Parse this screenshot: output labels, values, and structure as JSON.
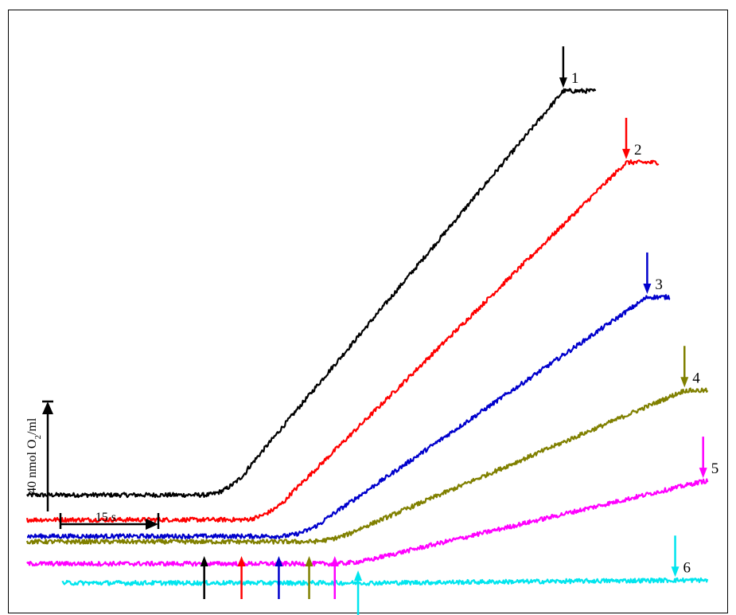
{
  "chart_data": {
    "type": "line",
    "title": "",
    "xlabel": "",
    "ylabel": "",
    "time_scale_bar": {
      "label": "15 s",
      "seconds": 15
    },
    "oxygen_scale_bar": {
      "label_prefix": "40 nmol O",
      "label_sub": "2",
      "label_suffix": "/ml",
      "nmol_per_ml": 40
    },
    "x_unit": "s",
    "y_unit": "nmol O2/ml",
    "series": [
      {
        "name": "1",
        "color": "#000000",
        "baseline": 17,
        "start_x": 0,
        "onset_x": 76,
        "rise_end_x": 230,
        "plateau": 164,
        "end_x": 244,
        "start_arrow_x": 76,
        "end_arrow_x": 230
      },
      {
        "name": "2",
        "color": "#ff0000",
        "baseline": 8,
        "start_x": 0,
        "onset_x": 92,
        "rise_end_x": 257,
        "plateau": 138,
        "end_x": 271,
        "start_arrow_x": 92,
        "end_arrow_x": 257
      },
      {
        "name": "3",
        "color": "#0000cc",
        "baseline": 2,
        "start_x": 0,
        "onset_x": 108,
        "rise_end_x": 266,
        "plateau": 89,
        "end_x": 276,
        "start_arrow_x": 108,
        "end_arrow_x": 266
      },
      {
        "name": "4",
        "color": "#808000",
        "baseline": 0,
        "start_x": 0,
        "onset_x": 120,
        "rise_end_x": 282,
        "plateau": 55,
        "end_x": 292,
        "start_arrow_x": 121,
        "end_arrow_x": 282
      },
      {
        "name": "5",
        "color": "#ff00ff",
        "baseline": -8,
        "start_x": 0,
        "onset_x": 130,
        "rise_end_x": 290,
        "plateau": 22,
        "end_x": 292,
        "start_arrow_x": 132,
        "end_arrow_x": 290
      },
      {
        "name": "6",
        "color": "#00e5ee",
        "baseline": -15,
        "start_x": 15,
        "onset_x": 140,
        "rise_end_x": 280,
        "plateau": -14,
        "end_x": 292,
        "start_arrow_x": 142,
        "end_arrow_x": 278
      }
    ]
  }
}
